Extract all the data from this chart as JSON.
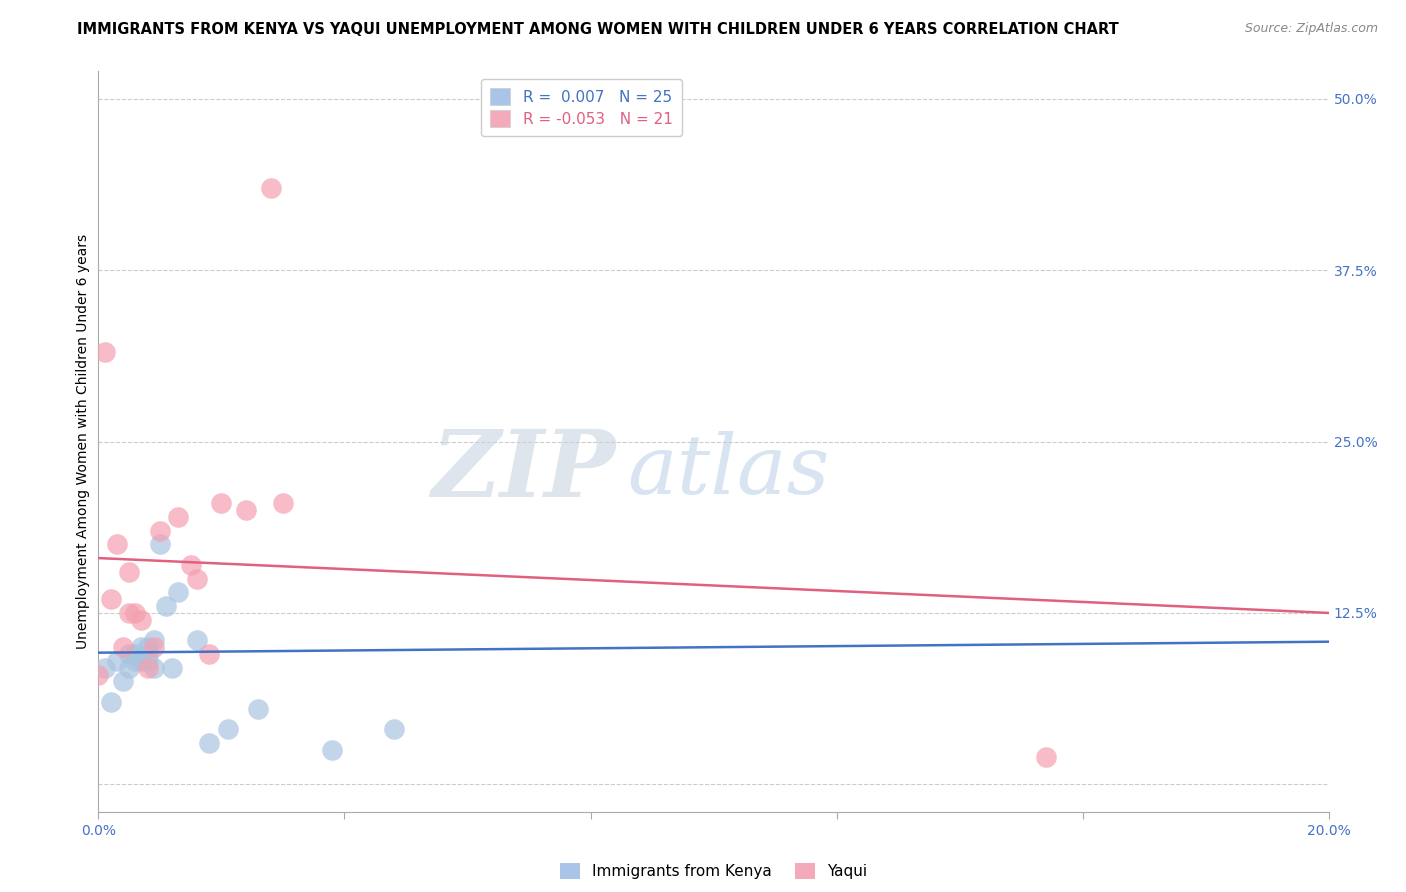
{
  "title": "IMMIGRANTS FROM KENYA VS YAQUI UNEMPLOYMENT AMONG WOMEN WITH CHILDREN UNDER 6 YEARS CORRELATION CHART",
  "source": "Source: ZipAtlas.com",
  "ylabel": "Unemployment Among Women with Children Under 6 years",
  "xlim": [
    0.0,
    0.2
  ],
  "ylim": [
    -0.02,
    0.52
  ],
  "xticks": [
    0.0,
    0.04,
    0.08,
    0.12,
    0.16,
    0.2
  ],
  "xticklabels": [
    "0.0%",
    "",
    "",
    "",
    "",
    "20.0%"
  ],
  "yticks_right": [
    0.0,
    0.125,
    0.25,
    0.375,
    0.5
  ],
  "yticklabels_right": [
    "",
    "12.5%",
    "25.0%",
    "37.5%",
    "50.0%"
  ],
  "blue_points_x": [
    0.001,
    0.002,
    0.003,
    0.004,
    0.005,
    0.005,
    0.006,
    0.006,
    0.007,
    0.007,
    0.008,
    0.008,
    0.008,
    0.009,
    0.009,
    0.01,
    0.011,
    0.012,
    0.013,
    0.016,
    0.018,
    0.021,
    0.026,
    0.038,
    0.048
  ],
  "blue_points_y": [
    0.085,
    0.06,
    0.09,
    0.075,
    0.095,
    0.085,
    0.095,
    0.09,
    0.1,
    0.09,
    0.1,
    0.095,
    0.09,
    0.105,
    0.085,
    0.175,
    0.13,
    0.085,
    0.14,
    0.105,
    0.03,
    0.04,
    0.055,
    0.025,
    0.04
  ],
  "pink_points_x": [
    0.001,
    0.002,
    0.003,
    0.004,
    0.005,
    0.005,
    0.006,
    0.007,
    0.008,
    0.009,
    0.01,
    0.013,
    0.015,
    0.016,
    0.018,
    0.02,
    0.024,
    0.028,
    0.03,
    0.154,
    0.0
  ],
  "pink_points_y": [
    0.315,
    0.135,
    0.175,
    0.1,
    0.155,
    0.125,
    0.125,
    0.12,
    0.085,
    0.1,
    0.185,
    0.195,
    0.16,
    0.15,
    0.095,
    0.205,
    0.2,
    0.435,
    0.205,
    0.02,
    0.08
  ],
  "blue_R": 0.007,
  "blue_N": 25,
  "pink_R": -0.053,
  "pink_N": 21,
  "blue_color": "#a8c4e0",
  "pink_color": "#f4a0b0",
  "blue_line_color": "#4472c4",
  "pink_line_color": "#e06080",
  "blue_legend_color": "#aac4e8",
  "pink_legend_color": "#f4aabb",
  "blue_line_x": [
    0.0,
    0.2
  ],
  "blue_line_y": [
    0.096,
    0.104
  ],
  "pink_line_x": [
    0.0,
    0.2
  ],
  "pink_line_y": [
    0.165,
    0.125
  ],
  "title_fontsize": 10.5,
  "source_fontsize": 9,
  "axis_label_fontsize": 10,
  "tick_fontsize": 10,
  "legend_fontsize": 11,
  "background_color": "#ffffff",
  "grid_color": "#cccccc",
  "grid_color2": "#dddddd"
}
